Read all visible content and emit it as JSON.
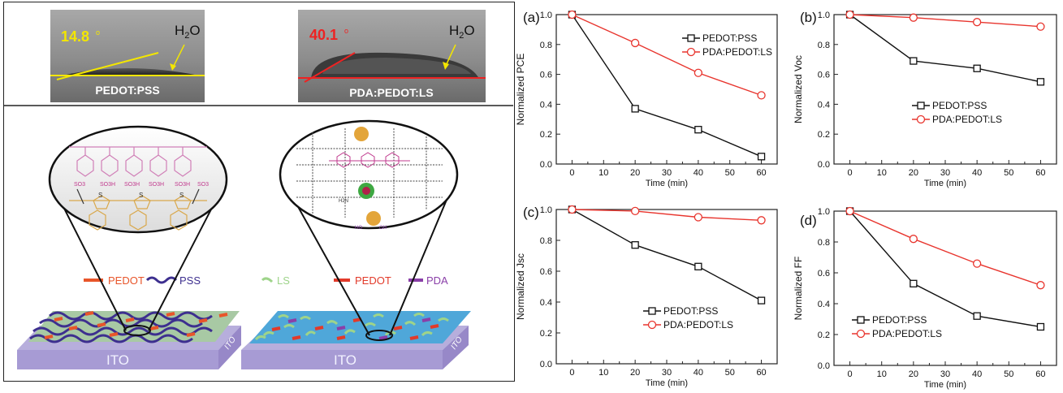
{
  "left_panel": {
    "contact_angles": [
      {
        "angle": "14.8",
        "water": "H",
        "water_sub": "2",
        "water_end": "O",
        "material": "PEDOT:PSS"
      },
      {
        "angle": "40.1",
        "water": "H",
        "water_sub": "2",
        "water_end": "O",
        "material": "PDA:PEDOT:LS"
      }
    ],
    "left_legend": {
      "pedot": "PEDOT",
      "pss": "PSS"
    },
    "right_legend": {
      "ls": "LS",
      "pedot": "PEDOT",
      "pda": "PDA"
    },
    "substrate": [
      "ITO",
      "ITO"
    ],
    "substrate_edge": [
      "ITO",
      "ITO"
    ],
    "chem_left": {
      "groups": [
        "SO3H",
        "SO3H",
        "SO3H",
        "SO3H"
      ],
      "ends": [
        "SO3",
        "SO3"
      ],
      "atom": "S"
    },
    "chem_right": {
      "labels": [
        "H2N",
        "HO",
        "OH"
      ]
    }
  },
  "chart_data": [
    {
      "panel": "(a)",
      "type": "line",
      "x": [
        0,
        20,
        40,
        60
      ],
      "series": [
        {
          "name": "PEDOT:PSS",
          "values": [
            1.0,
            0.37,
            0.23,
            0.05
          ],
          "color": "#111111",
          "marker": "square"
        },
        {
          "name": "PDA:PEDOT:LS",
          "values": [
            1.0,
            0.81,
            0.61,
            0.46
          ],
          "color": "#e8352e",
          "marker": "circle"
        }
      ],
      "xlabel": "Time (min)",
      "ylabel": "Normalized PCE",
      "xlim": [
        -5,
        65
      ],
      "ylim": [
        0,
        1.0
      ],
      "xticks": [
        0,
        10,
        20,
        30,
        40,
        50,
        60
      ],
      "yticks": [
        0.0,
        0.2,
        0.4,
        0.6,
        0.8,
        1.0
      ],
      "legend_position": "top-right"
    },
    {
      "panel": "(b)",
      "type": "line",
      "x": [
        0,
        20,
        40,
        60
      ],
      "series": [
        {
          "name": "PEDOT:PSS",
          "values": [
            1.0,
            0.69,
            0.64,
            0.55
          ],
          "color": "#111111",
          "marker": "square"
        },
        {
          "name": "PDA:PEDOT:LS",
          "values": [
            1.0,
            0.98,
            0.95,
            0.92
          ],
          "color": "#e8352e",
          "marker": "circle"
        }
      ],
      "xlabel": "Time (min)",
      "ylabel": "Normalized Voc",
      "xlim": [
        -5,
        65
      ],
      "ylim": [
        0,
        1.0
      ],
      "xticks": [
        0,
        10,
        20,
        30,
        40,
        50,
        60
      ],
      "yticks": [
        0.0,
        0.2,
        0.4,
        0.6,
        0.8,
        1.0
      ],
      "legend_position": "center"
    },
    {
      "panel": "(c)",
      "type": "line",
      "x": [
        0,
        20,
        40,
        60
      ],
      "series": [
        {
          "name": "PEDOT:PSS",
          "values": [
            1.0,
            0.77,
            0.63,
            0.41
          ],
          "color": "#111111",
          "marker": "square"
        },
        {
          "name": "PDA:PEDOT:LS",
          "values": [
            1.0,
            0.99,
            0.95,
            0.93
          ],
          "color": "#e8352e",
          "marker": "circle"
        }
      ],
      "xlabel": "Time (min)",
      "ylabel": "Normalized Jsc",
      "xlim": [
        -5,
        65
      ],
      "ylim": [
        0,
        1.0
      ],
      "xticks": [
        0,
        10,
        20,
        30,
        40,
        50,
        60
      ],
      "yticks": [
        0.0,
        0.2,
        0.4,
        0.6,
        0.8,
        1.0
      ],
      "legend_position": "bottom-center"
    },
    {
      "panel": "(d)",
      "type": "line",
      "x": [
        0,
        20,
        40,
        60
      ],
      "series": [
        {
          "name": "PEDOT:PSS",
          "values": [
            1.0,
            0.53,
            0.32,
            0.25
          ],
          "color": "#111111",
          "marker": "square"
        },
        {
          "name": "PDA:PEDOT:LS",
          "values": [
            1.0,
            0.82,
            0.66,
            0.52
          ],
          "color": "#e8352e",
          "marker": "circle"
        }
      ],
      "xlabel": "Time (min)",
      "ylabel": "Normalized FF",
      "xlim": [
        -5,
        65
      ],
      "ylim": [
        0,
        1.0
      ],
      "xticks": [
        0,
        10,
        20,
        30,
        40,
        50,
        60
      ],
      "yticks": [
        0.0,
        0.2,
        0.4,
        0.6,
        0.8,
        1.0
      ],
      "legend_position": "bottom-left"
    }
  ]
}
